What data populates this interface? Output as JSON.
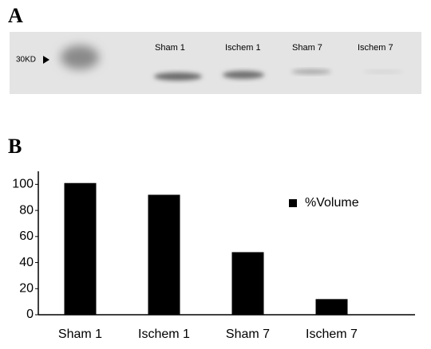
{
  "panels": {
    "a": "A",
    "b": "B"
  },
  "blot": {
    "marker": "30KD",
    "lanes": [
      "Sham 1",
      "Ischem 1",
      "Sham 7",
      "Ischem 7"
    ]
  },
  "chart_data": {
    "type": "bar",
    "categories": [
      "Sham 1",
      "Ischem 1",
      "Sham 7",
      "Ischem 7"
    ],
    "series": [
      {
        "name": "%Volume",
        "color": "#000000",
        "values": [
          101,
          92,
          48,
          12
        ]
      }
    ],
    "ylim": [
      0,
      110
    ],
    "yticks": [
      0,
      20,
      40,
      60,
      80,
      100
    ],
    "legend": "upper right",
    "grid": false
  }
}
